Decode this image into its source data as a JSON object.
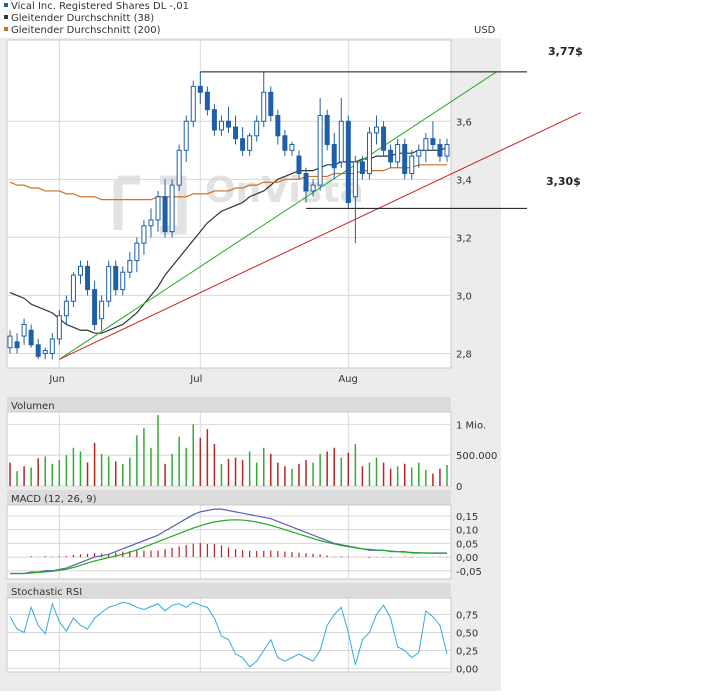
{
  "legend": [
    {
      "label": "Vical Inc. Registered Shares DL -,01",
      "color": "#1f5fa8"
    },
    {
      "label": "Gleitender Durchschnitt (38)",
      "color": "#333333"
    },
    {
      "label": "Gleitender Durchschnitt (200)",
      "color": "#c8732a"
    }
  ],
  "currency": "USD",
  "watermark": "OnVista",
  "annotations": {
    "resistance_label": "3,77$",
    "support_label": "3,30$"
  },
  "colors": {
    "candle": "#1f5fa8",
    "ma38": "#333333",
    "ma200": "#c8732a",
    "trend_green": "#22aa22",
    "trend_red": "#cc2222",
    "grid": "#d8d8d8",
    "panel_header": "#dcdcdc",
    "outer_bg": "#ececec",
    "vol_up": "#33aa33",
    "vol_down": "#bb2222",
    "macd_line": "#5566aa",
    "signal_line": "#22aa22",
    "rsi_line": "#33aadd"
  },
  "chart_data": [
    {
      "type": "candlestick",
      "title": "Vical Inc. Registered Shares DL -,01",
      "ylabel": "USD",
      "ylim": [
        2.75,
        3.88
      ],
      "y_ticks": [
        "3,6",
        "3,4",
        "3,2",
        "3,0",
        "2,8"
      ],
      "y_tick_values": [
        3.6,
        3.4,
        3.2,
        3.0,
        2.8
      ],
      "x_tick_labels": [
        "Jun",
        "Jul",
        "Aug"
      ],
      "x_tick_index": [
        7,
        27,
        48
      ],
      "n_days": 63,
      "ohlc": [
        [
          2.82,
          2.88,
          2.8,
          2.86
        ],
        [
          2.84,
          2.87,
          2.8,
          2.82
        ],
        [
          2.86,
          2.92,
          2.83,
          2.9
        ],
        [
          2.88,
          2.9,
          2.82,
          2.83
        ],
        [
          2.83,
          2.85,
          2.78,
          2.79
        ],
        [
          2.8,
          2.82,
          2.78,
          2.81
        ],
        [
          2.8,
          2.87,
          2.78,
          2.85
        ],
        [
          2.85,
          2.95,
          2.83,
          2.93
        ],
        [
          2.93,
          3.0,
          2.9,
          2.98
        ],
        [
          2.98,
          3.08,
          2.96,
          3.07
        ],
        [
          3.07,
          3.12,
          3.04,
          3.1
        ],
        [
          3.1,
          3.12,
          3.0,
          3.02
        ],
        [
          3.02,
          3.05,
          2.88,
          2.9
        ],
        [
          2.92,
          3.0,
          2.88,
          2.98
        ],
        [
          2.98,
          3.12,
          2.96,
          3.1
        ],
        [
          3.1,
          3.12,
          3.0,
          3.02
        ],
        [
          3.02,
          3.1,
          3.0,
          3.08
        ],
        [
          3.08,
          3.15,
          3.06,
          3.12
        ],
        [
          3.12,
          3.2,
          3.08,
          3.18
        ],
        [
          3.18,
          3.26,
          3.14,
          3.24
        ],
        [
          3.24,
          3.3,
          3.2,
          3.26
        ],
        [
          3.26,
          3.36,
          3.22,
          3.34
        ],
        [
          3.34,
          3.4,
          3.2,
          3.22
        ],
        [
          3.22,
          3.4,
          3.2,
          3.38
        ],
        [
          3.38,
          3.52,
          3.36,
          3.5
        ],
        [
          3.5,
          3.62,
          3.46,
          3.6
        ],
        [
          3.6,
          3.74,
          3.58,
          3.72
        ],
        [
          3.72,
          3.77,
          3.66,
          3.7
        ],
        [
          3.7,
          3.72,
          3.62,
          3.64
        ],
        [
          3.64,
          3.66,
          3.55,
          3.57
        ],
        [
          3.57,
          3.62,
          3.55,
          3.6
        ],
        [
          3.6,
          3.65,
          3.56,
          3.58
        ],
        [
          3.58,
          3.62,
          3.52,
          3.54
        ],
        [
          3.54,
          3.58,
          3.48,
          3.5
        ],
        [
          3.5,
          3.56,
          3.48,
          3.55
        ],
        [
          3.55,
          3.62,
          3.53,
          3.6
        ],
        [
          3.6,
          3.77,
          3.58,
          3.7
        ],
        [
          3.7,
          3.72,
          3.6,
          3.62
        ],
        [
          3.62,
          3.64,
          3.52,
          3.55
        ],
        [
          3.55,
          3.57,
          3.48,
          3.5
        ],
        [
          3.5,
          3.53,
          3.48,
          3.52
        ],
        [
          3.48,
          3.5,
          3.4,
          3.42
        ],
        [
          3.42,
          3.44,
          3.32,
          3.36
        ],
        [
          3.36,
          3.4,
          3.34,
          3.38
        ],
        [
          3.38,
          3.68,
          3.36,
          3.62
        ],
        [
          3.62,
          3.64,
          3.5,
          3.52
        ],
        [
          3.52,
          3.56,
          3.4,
          3.44
        ],
        [
          3.46,
          3.68,
          3.44,
          3.6
        ],
        [
          3.6,
          3.62,
          3.3,
          3.32
        ],
        [
          3.34,
          3.48,
          3.18,
          3.46
        ],
        [
          3.46,
          3.48,
          3.4,
          3.42
        ],
        [
          3.42,
          3.58,
          3.4,
          3.56
        ],
        [
          3.56,
          3.62,
          3.52,
          3.58
        ],
        [
          3.58,
          3.6,
          3.48,
          3.5
        ],
        [
          3.5,
          3.52,
          3.44,
          3.46
        ],
        [
          3.46,
          3.54,
          3.44,
          3.52
        ],
        [
          3.52,
          3.54,
          3.4,
          3.42
        ],
        [
          3.42,
          3.5,
          3.4,
          3.48
        ],
        [
          3.48,
          3.52,
          3.44,
          3.5
        ],
        [
          3.5,
          3.56,
          3.46,
          3.54
        ],
        [
          3.54,
          3.6,
          3.5,
          3.52
        ],
        [
          3.52,
          3.54,
          3.46,
          3.48
        ],
        [
          3.48,
          3.54,
          3.46,
          3.52
        ]
      ],
      "series": [
        {
          "name": "Gleitender Durchschnitt (38)",
          "values": [
            3.01,
            3.0,
            2.99,
            2.97,
            2.96,
            2.95,
            2.94,
            2.92,
            2.9,
            2.89,
            2.88,
            2.88,
            2.87,
            2.87,
            2.88,
            2.89,
            2.9,
            2.92,
            2.94,
            2.97,
            3.0,
            3.03,
            3.07,
            3.1,
            3.13,
            3.16,
            3.19,
            3.22,
            3.25,
            3.27,
            3.29,
            3.3,
            3.31,
            3.32,
            3.34,
            3.35,
            3.36,
            3.38,
            3.4,
            3.41,
            3.42,
            3.43,
            3.43,
            3.43,
            3.44,
            3.45,
            3.45,
            3.46,
            3.46,
            3.46,
            3.47,
            3.47,
            3.48,
            3.48,
            3.48,
            3.49,
            3.49,
            3.49,
            3.5,
            3.5,
            3.5,
            3.5,
            3.51
          ]
        },
        {
          "name": "Gleitender Durchschnitt (200)",
          "values": [
            3.39,
            3.38,
            3.38,
            3.37,
            3.37,
            3.36,
            3.36,
            3.36,
            3.35,
            3.35,
            3.34,
            3.34,
            3.34,
            3.33,
            3.33,
            3.33,
            3.33,
            3.33,
            3.33,
            3.33,
            3.33,
            3.34,
            3.34,
            3.34,
            3.34,
            3.34,
            3.35,
            3.35,
            3.35,
            3.36,
            3.36,
            3.36,
            3.37,
            3.37,
            3.38,
            3.38,
            3.39,
            3.39,
            3.39,
            3.4,
            3.4,
            3.4,
            3.41,
            3.41,
            3.41,
            3.41,
            3.42,
            3.42,
            3.42,
            3.42,
            3.43,
            3.43,
            3.43,
            3.43,
            3.44,
            3.44,
            3.44,
            3.44,
            3.45,
            3.45,
            3.45,
            3.45,
            3.45
          ]
        }
      ],
      "trendlines": [
        {
          "name": "green",
          "from": [
            7,
            2.78
          ],
          "to": [
            69,
            3.77
          ]
        },
        {
          "name": "red",
          "from": [
            7,
            2.78
          ],
          "to": [
            81,
            3.63
          ]
        }
      ],
      "hlines": [
        {
          "value": 3.77,
          "from_index": 27,
          "label": "3,77$"
        },
        {
          "value": 3.3,
          "from_index": 42,
          "label": "3,30$"
        }
      ]
    },
    {
      "type": "bar",
      "title": "Volumen",
      "y_ticks": [
        "1 Mio.",
        "500.000",
        "0"
      ],
      "y_tick_values": [
        1000000,
        500000,
        0
      ],
      "ylim": [
        0,
        1200000
      ],
      "values": [
        380000,
        240000,
        320000,
        300000,
        450000,
        480000,
        360000,
        420000,
        500000,
        620000,
        560000,
        380000,
        700000,
        520000,
        480000,
        400000,
        360000,
        460000,
        820000,
        940000,
        620000,
        1150000,
        360000,
        520000,
        800000,
        620000,
        1000000,
        780000,
        920000,
        680000,
        360000,
        440000,
        460000,
        420000,
        560000,
        380000,
        620000,
        520000,
        380000,
        320000,
        280000,
        360000,
        420000,
        380000,
        520000,
        560000,
        620000,
        460000,
        540000,
        680000,
        320000,
        380000,
        460000,
        380000,
        280000,
        320000,
        360000,
        300000,
        380000,
        260000,
        200000,
        280000,
        340000
      ],
      "up": [
        0,
        1,
        0,
        1,
        0,
        1,
        1,
        1,
        1,
        1,
        1,
        0,
        0,
        1,
        1,
        0,
        1,
        1,
        1,
        1,
        1,
        1,
        0,
        1,
        1,
        1,
        1,
        0,
        0,
        0,
        1,
        0,
        0,
        0,
        1,
        1,
        1,
        0,
        0,
        0,
        1,
        0,
        0,
        1,
        1,
        0,
        0,
        1,
        0,
        1,
        0,
        1,
        1,
        0,
        0,
        1,
        0,
        1,
        1,
        1,
        0,
        0,
        1
      ]
    },
    {
      "type": "line",
      "title": "MACD (12, 26, 9)",
      "y_ticks": [
        "0,15",
        "0,10",
        "0,05",
        "0,00",
        "-0,05"
      ],
      "y_tick_values": [
        0.15,
        0.1,
        0.05,
        0.0,
        -0.05
      ],
      "ylim": [
        -0.08,
        0.19
      ],
      "series": [
        {
          "name": "MACD",
          "values": [
            -0.06,
            -0.06,
            -0.06,
            -0.055,
            -0.055,
            -0.05,
            -0.05,
            -0.045,
            -0.04,
            -0.03,
            -0.02,
            -0.01,
            0.0,
            0.005,
            0.01,
            0.02,
            0.03,
            0.04,
            0.05,
            0.06,
            0.07,
            0.08,
            0.095,
            0.11,
            0.125,
            0.14,
            0.155,
            0.165,
            0.17,
            0.175,
            0.175,
            0.17,
            0.165,
            0.16,
            0.155,
            0.15,
            0.145,
            0.14,
            0.13,
            0.12,
            0.11,
            0.1,
            0.09,
            0.08,
            0.07,
            0.06,
            0.05,
            0.045,
            0.04,
            0.035,
            0.03,
            0.025,
            0.025,
            0.025,
            0.02,
            0.02,
            0.02,
            0.015,
            0.015,
            0.015,
            0.015,
            0.015,
            0.015
          ]
        },
        {
          "name": "Signal",
          "values": [
            -0.06,
            -0.06,
            -0.06,
            -0.058,
            -0.056,
            -0.054,
            -0.052,
            -0.048,
            -0.044,
            -0.038,
            -0.03,
            -0.022,
            -0.014,
            -0.008,
            -0.002,
            0.004,
            0.01,
            0.018,
            0.026,
            0.036,
            0.046,
            0.056,
            0.066,
            0.076,
            0.086,
            0.096,
            0.106,
            0.114,
            0.122,
            0.128,
            0.132,
            0.135,
            0.136,
            0.135,
            0.132,
            0.128,
            0.122,
            0.116,
            0.108,
            0.1,
            0.092,
            0.084,
            0.076,
            0.068,
            0.06,
            0.054,
            0.048,
            0.042,
            0.038,
            0.034,
            0.03,
            0.028,
            0.026,
            0.024,
            0.022,
            0.02,
            0.018,
            0.017,
            0.016,
            0.015,
            0.014,
            0.014,
            0.014
          ]
        }
      ],
      "histogram": [
        0.0,
        0.0,
        0.0,
        0.003,
        0.001,
        0.004,
        0.002,
        0.003,
        0.004,
        0.008,
        0.01,
        0.012,
        0.014,
        0.013,
        0.012,
        0.016,
        0.02,
        0.022,
        0.024,
        0.024,
        0.024,
        0.024,
        0.029,
        0.034,
        0.039,
        0.044,
        0.049,
        0.051,
        0.048,
        0.047,
        0.043,
        0.035,
        0.029,
        0.025,
        0.023,
        0.022,
        0.023,
        0.024,
        0.022,
        0.02,
        0.018,
        0.016,
        0.014,
        0.012,
        0.01,
        0.006,
        0.002,
        0.003,
        0.002,
        0.001,
        0.0,
        -0.003,
        -0.001,
        0.001,
        -0.002,
        0.0,
        0.002,
        -0.002,
        -0.001,
        0.0,
        0.001,
        0.001,
        0.001
      ]
    },
    {
      "type": "line",
      "title": "Stochastic RSI",
      "y_ticks": [
        "0,75",
        "0,50",
        "0,25",
        "0,00"
      ],
      "y_tick_values": [
        0.75,
        0.5,
        0.25,
        0.0
      ],
      "ylim": [
        -0.05,
        0.98
      ],
      "series": [
        {
          "name": "Stochastic RSI",
          "values": [
            0.72,
            0.55,
            0.5,
            0.85,
            0.6,
            0.48,
            0.9,
            0.65,
            0.52,
            0.7,
            0.6,
            0.55,
            0.7,
            0.78,
            0.85,
            0.88,
            0.92,
            0.9,
            0.85,
            0.82,
            0.86,
            0.9,
            0.8,
            0.88,
            0.9,
            0.85,
            0.92,
            0.88,
            0.85,
            0.7,
            0.45,
            0.4,
            0.2,
            0.15,
            0.02,
            0.1,
            0.25,
            0.4,
            0.15,
            0.1,
            0.15,
            0.2,
            0.15,
            0.1,
            0.25,
            0.6,
            0.75,
            0.85,
            0.5,
            0.05,
            0.4,
            0.5,
            0.75,
            0.88,
            0.7,
            0.3,
            0.25,
            0.15,
            0.22,
            0.8,
            0.72,
            0.6,
            0.2
          ]
        }
      ]
    }
  ]
}
